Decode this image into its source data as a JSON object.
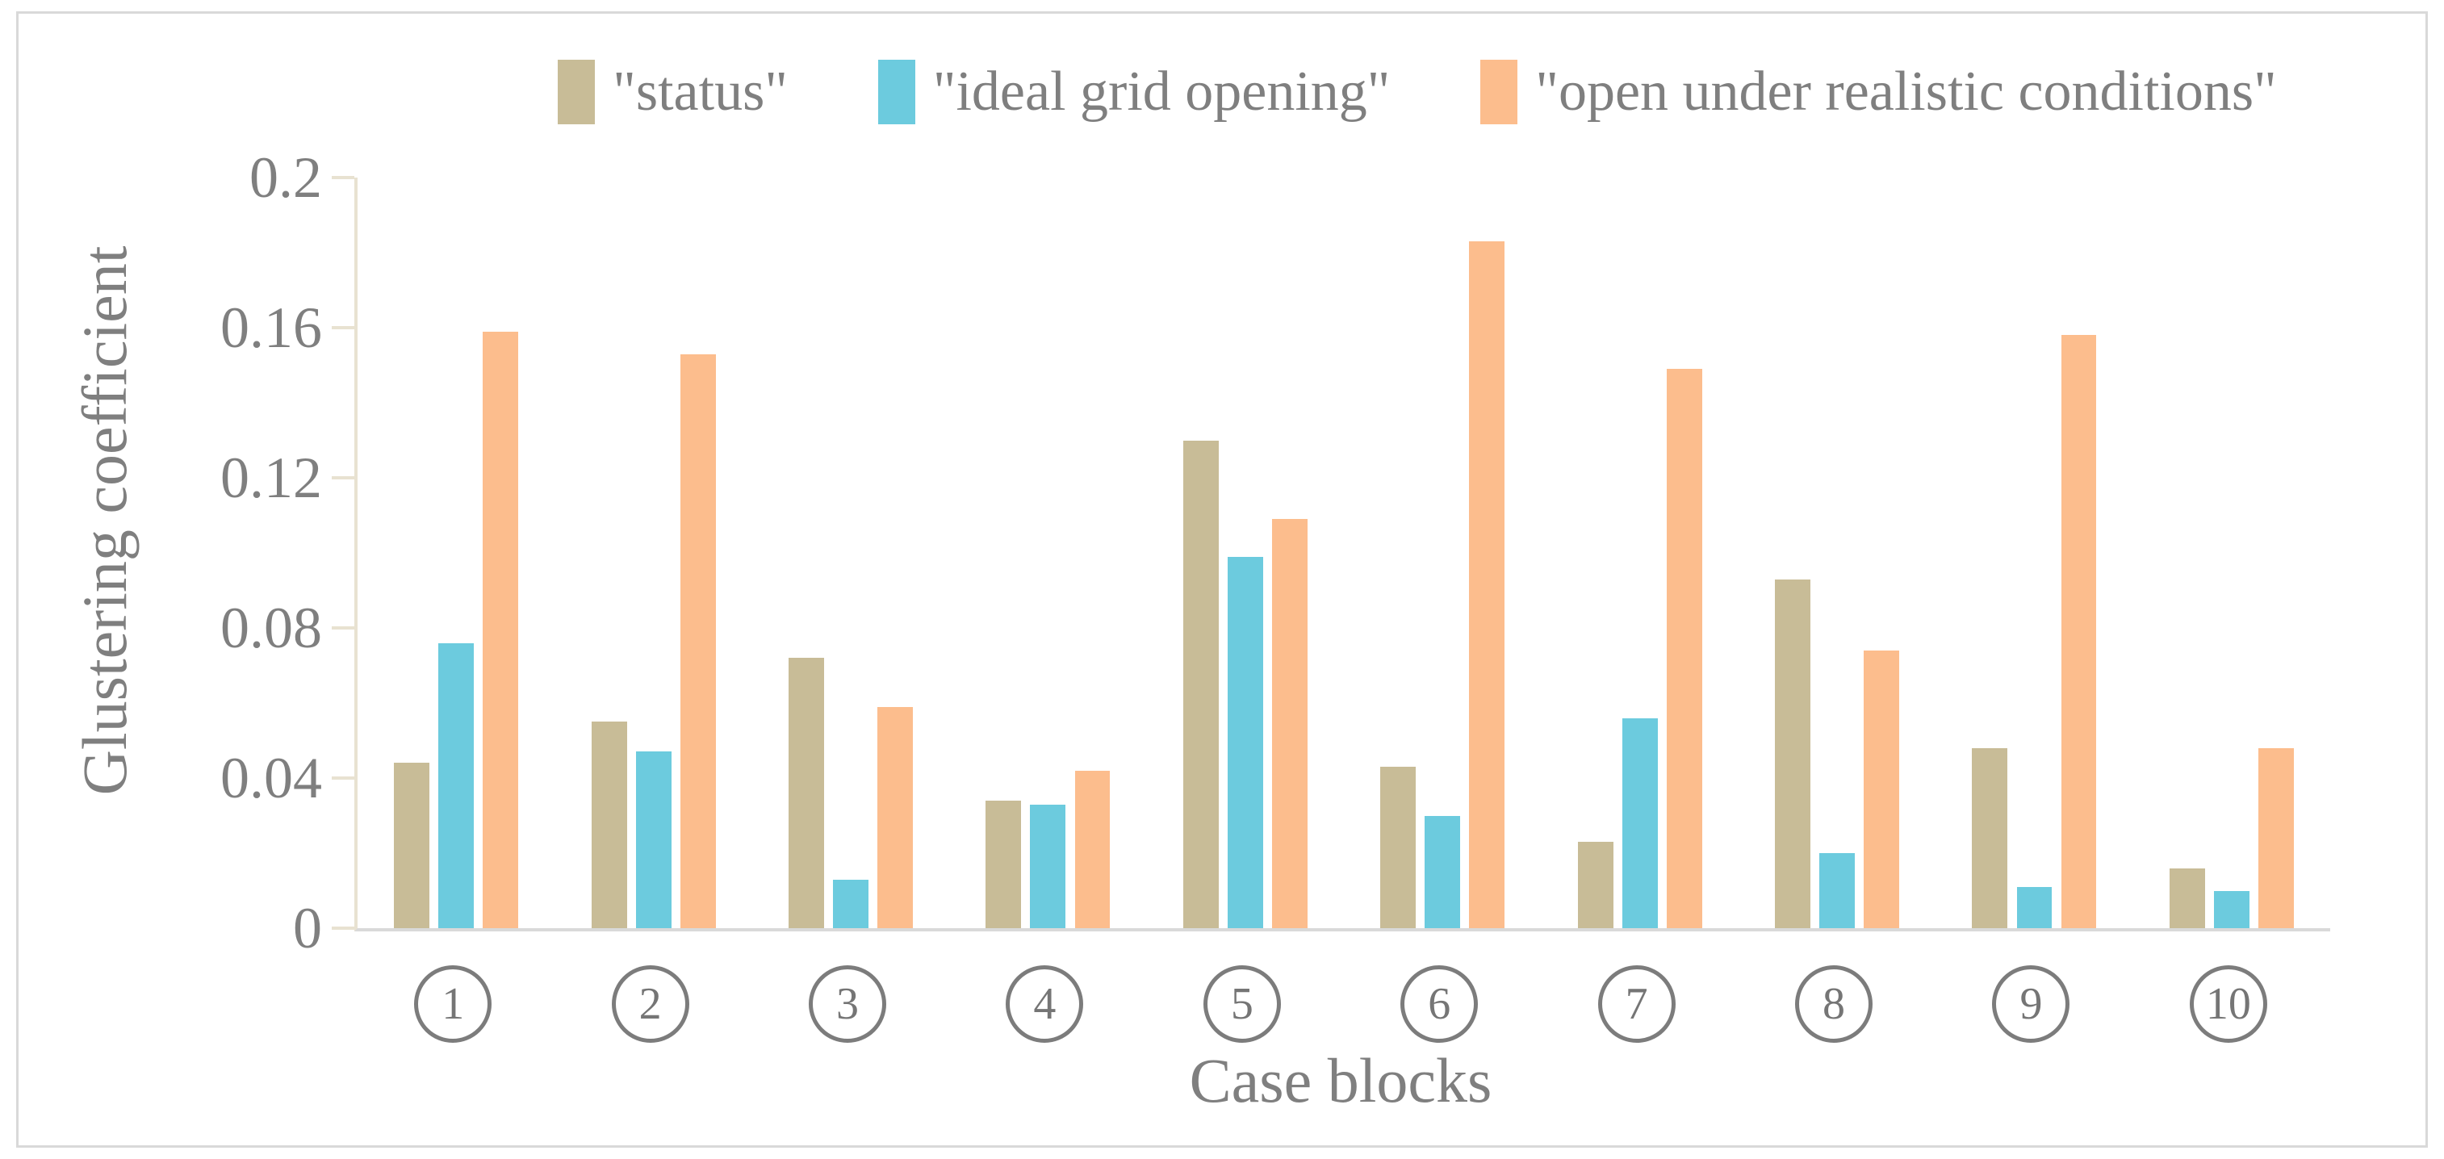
{
  "chart_data": {
    "type": "bar",
    "title": "",
    "xlabel": "Case blocks",
    "ylabel": "Glustering coefficient",
    "ylim": [
      0,
      0.2
    ],
    "ytick_values": [
      0,
      0.04,
      0.08,
      0.12,
      0.16,
      0.2
    ],
    "ytick_labels": [
      "0",
      "0.04",
      "0.08",
      "0.12",
      "0.16",
      "0.2"
    ],
    "grid": "off",
    "legend_position": "top-center",
    "categories": [
      "1",
      "2",
      "3",
      "4",
      "5",
      "6",
      "7",
      "8",
      "9",
      "10"
    ],
    "category_style": "circled-number",
    "series": [
      {
        "key": "status",
        "name": "\"status\"",
        "color": "#C8BC97",
        "values": [
          0.044,
          0.055,
          0.072,
          0.034,
          0.13,
          0.043,
          0.023,
          0.093,
          0.048,
          0.016
        ]
      },
      {
        "key": "ideal-grid-opening",
        "name": "\"ideal grid opening\"",
        "color": "#6CCBDE",
        "values": [
          0.076,
          0.047,
          0.013,
          0.033,
          0.099,
          0.03,
          0.056,
          0.02,
          0.011,
          0.01
        ]
      },
      {
        "key": "open-under-realistic-conditions",
        "name": "\"open under realistic conditions\"",
        "color": "#FCBD8D",
        "values": [
          0.159,
          0.153,
          0.059,
          0.042,
          0.109,
          0.183,
          0.149,
          0.074,
          0.158,
          0.048
        ]
      }
    ],
    "colors": {
      "axis_line": "#E8E2D1",
      "baseline": "#D9D9D9",
      "frame_border": "#D9D9D9",
      "text": "#7F7F7F",
      "background": "#FFFFFF"
    }
  }
}
